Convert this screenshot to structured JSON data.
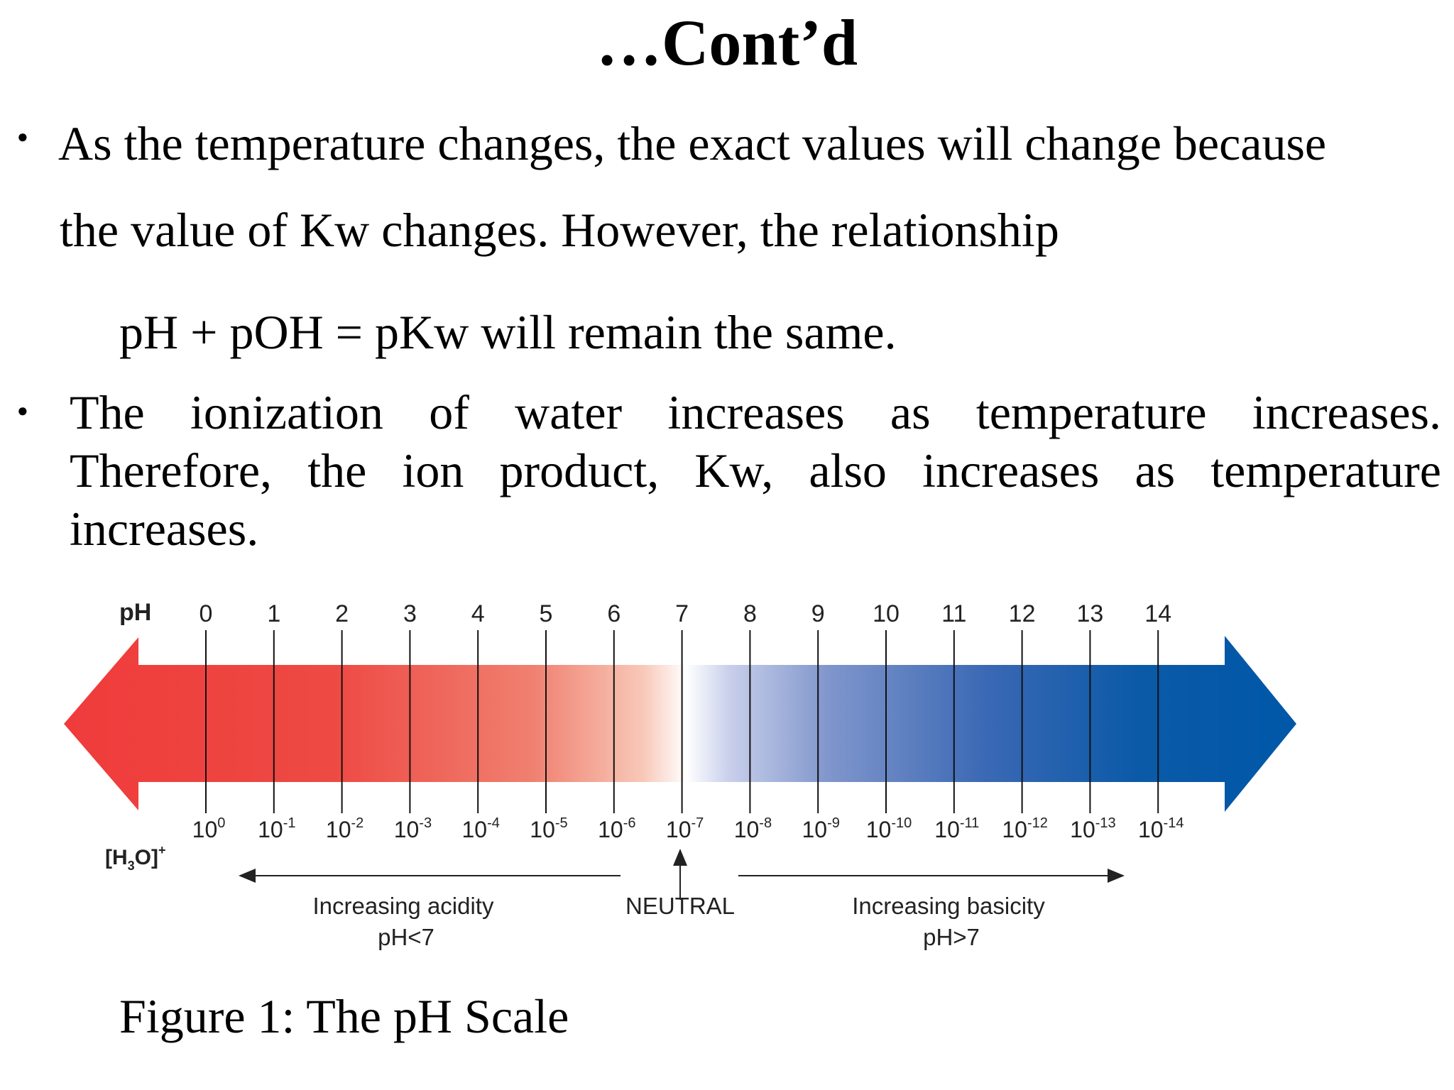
{
  "title": "…Cont’d",
  "bullets": [
    {
      "lines": [
        "As the temperature changes, the exact values will change because",
        "the value of Kw changes. However, the relationship"
      ],
      "equation": "pH + pOH = pKw will remain the same."
    },
    {
      "lines": [
        "The ionization of water increases as temperature increases.",
        "Therefore, the ion product, Kw, also increases as temperature",
        "increases."
      ]
    }
  ],
  "figure": {
    "ph_label": "pH",
    "ph_values": [
      "0",
      "1",
      "2",
      "3",
      "4",
      "5",
      "6",
      "7",
      "8",
      "9",
      "10",
      "11",
      "12",
      "13",
      "14"
    ],
    "h3o_label": {
      "main": "[H",
      "sub": "3",
      "rest": "O]",
      "sup": "+"
    },
    "h3o_base": "10",
    "h3o_exponents": [
      "0",
      "-1",
      "-2",
      "-3",
      "-4",
      "-5",
      "-6",
      "-7",
      "-8",
      "-9",
      "-10",
      "-11",
      "-12",
      "-13",
      "-14"
    ],
    "acid_label": "Increasing acidity",
    "acid_sub": "pH<7",
    "neutral_label": "NEUTRAL",
    "base_label": "Increasing basicity",
    "base_sub": "pH>7",
    "colors": {
      "acid": "#ef3b3b",
      "neutral": "#ffffff",
      "base": "#0057a8",
      "text": "#222222"
    }
  },
  "caption": "Figure 1: The pH Scale"
}
